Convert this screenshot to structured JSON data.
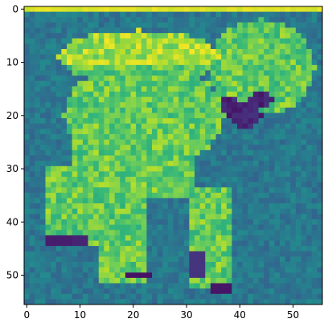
{
  "chart_data": {
    "type": "heatmap",
    "colormap": "viridis",
    "grid": false,
    "rows": 56,
    "cols": 56,
    "xlim": [
      -0.5,
      55.5
    ],
    "ylim": [
      55.5,
      -0.5
    ],
    "x_ticks": [
      {
        "value": 0,
        "label": "0"
      },
      {
        "value": 10,
        "label": "10"
      },
      {
        "value": 20,
        "label": "20"
      },
      {
        "value": 30,
        "label": "30"
      },
      {
        "value": 40,
        "label": "40"
      },
      {
        "value": 50,
        "label": "50"
      }
    ],
    "y_ticks": [
      {
        "value": 0,
        "label": "0"
      },
      {
        "value": 10,
        "label": "10"
      },
      {
        "value": 20,
        "label": "20"
      },
      {
        "value": 30,
        "label": "30"
      },
      {
        "value": 40,
        "label": "40"
      },
      {
        "value": 50,
        "label": "50"
      }
    ],
    "title": "",
    "xlabel": "",
    "ylabel": "",
    "content": "grayscale photo of a standing dog rendered with viridis colormap"
  }
}
